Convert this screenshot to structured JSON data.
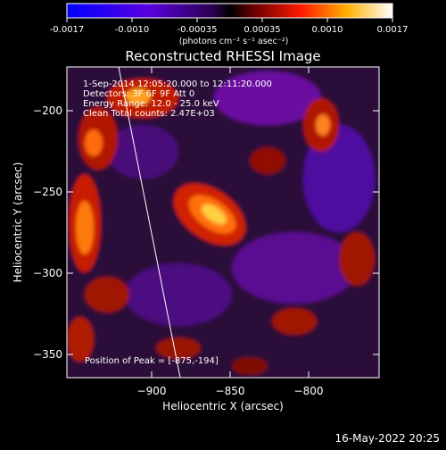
{
  "colorbar": {
    "ticks": [
      "-0.0017",
      "-0.0010",
      "-0.00035",
      "0.00035",
      "0.0010",
      "0.0017"
    ],
    "unit_label": "(photons cm⁻² s⁻¹ asec⁻²)"
  },
  "plot": {
    "title": "Reconstructed RHESSI Image",
    "xlabel": "Heliocentric X (arcsec)",
    "ylabel": "Heliocentric Y (arcsec)",
    "xticks": [
      "−900",
      "−850",
      "−800"
    ],
    "yticks": [
      "−200",
      "−250",
      "−300",
      "−350"
    ],
    "info": {
      "line1": "1-Sep-2014 12:05:20.000 to 12:11:20.000",
      "line2": "Detectors: 3F 6F 9F Att 0",
      "line3": "Energy Range: 12.0 - 25.0 keV",
      "line4": "Clean     Total counts: 2.47E+03"
    },
    "peak": "Position of Peak = [-875,-194]"
  },
  "footer_date": "16-May-2022 20:25"
}
